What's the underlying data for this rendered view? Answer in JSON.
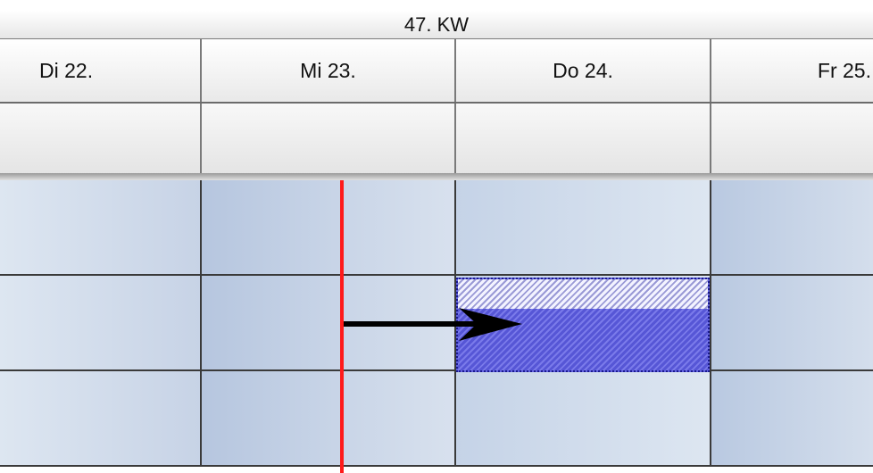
{
  "header": {
    "week_label": "47. KW",
    "days": [
      {
        "label": "Di 22."
      },
      {
        "label": "Mi 23."
      },
      {
        "label": "Do 24."
      },
      {
        "label": "Fr 25."
      }
    ]
  },
  "colors": {
    "today_line": "#ff1a1a",
    "task_fill": "#6262e0",
    "task_border": "#1a1a8c",
    "grid_line": "#3a3a3a"
  },
  "task": {
    "name": "task-bar",
    "state": "being-moved"
  },
  "icons": {
    "arrow": "right-arrow-icon"
  }
}
